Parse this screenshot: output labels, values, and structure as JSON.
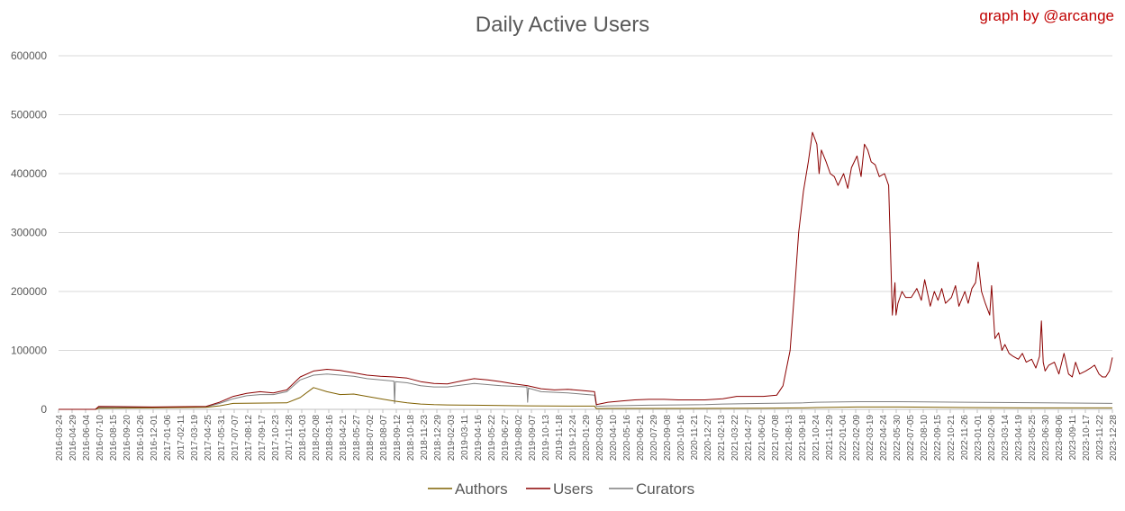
{
  "credit": "graph by @arcange",
  "colors": {
    "Authors": "#7f6000",
    "Users": "#8b0000",
    "Curators": "#7f7f7f",
    "grid": "#d9d9d9",
    "text": "#595959"
  },
  "chart_data": {
    "type": "line",
    "title": "Daily Active Users",
    "xlabel": "",
    "ylabel": "",
    "ylim": [
      0,
      600000
    ],
    "yticks": [
      "0",
      "100000",
      "200000",
      "300000",
      "400000",
      "500000",
      "600000"
    ],
    "grid": true,
    "legend_position": "bottom",
    "x_tick_labels": [
      "2016-03-24",
      "2016-04-29",
      "2016-06-04",
      "2016-07-10",
      "2016-08-15",
      "2016-09-20",
      "2016-10-26",
      "2016-12-01",
      "2017-01-06",
      "2017-02-11",
      "2017-03-19",
      "2017-04-25",
      "2017-05-31",
      "2017-07-07",
      "2017-08-12",
      "2017-09-17",
      "2017-10-23",
      "2017-11-28",
      "2018-01-03",
      "2018-02-08",
      "2018-03-16",
      "2018-04-21",
      "2018-05-27",
      "2018-07-02",
      "2018-08-07",
      "2018-09-12",
      "2018-10-18",
      "2018-11-23",
      "2018-12-29",
      "2019-02-03",
      "2019-03-11",
      "2019-04-16",
      "2019-05-22",
      "2019-06-27",
      "2019-08-02",
      "2019-09-07",
      "2019-10-13",
      "2019-11-18",
      "2019-12-24",
      "2020-01-29",
      "2020-03-05",
      "2020-04-10",
      "2020-05-16",
      "2020-06-21",
      "2020-07-29",
      "2020-09-08",
      "2020-10-16",
      "2020-11-21",
      "2020-12-27",
      "2021-02-13",
      "2021-03-22",
      "2021-04-27",
      "2021-06-02",
      "2021-07-08",
      "2021-08-13",
      "2021-09-18",
      "2021-10-24",
      "2021-11-29",
      "2022-01-04",
      "2022-02-09",
      "2022-03-19",
      "2022-04-24",
      "2022-05-30",
      "2022-07-05",
      "2022-08-10",
      "2022-09-15",
      "2022-10-21",
      "2022-11-26",
      "2023-01-01",
      "2023-02-06",
      "2023-03-14",
      "2023-04-19",
      "2023-05-25",
      "2023-06-30",
      "2023-08-06",
      "2023-09-11",
      "2023-10-17",
      "2023-11-22",
      "2023-12-28"
    ],
    "series": [
      {
        "name": "Authors",
        "x": [
          "2016-03-24",
          "2016-07-01",
          "2016-07-10",
          "2016-12-01",
          "2017-04-25",
          "2017-05-31",
          "2017-07-07",
          "2017-11-28",
          "2018-01-03",
          "2018-02-08",
          "2018-03-16",
          "2018-04-21",
          "2018-05-27",
          "2018-07-02",
          "2018-08-07",
          "2018-09-12",
          "2018-10-18",
          "2018-11-23",
          "2018-12-29",
          "2019-02-03",
          "2019-04-16",
          "2019-06-27",
          "2019-09-07",
          "2019-12-24",
          "2020-03-05",
          "2020-03-10",
          "2020-04-10",
          "2020-07-29",
          "2021-02-13",
          "2021-06-02",
          "2021-09-18",
          "2021-10-24",
          "2022-02-09",
          "2022-05-30",
          "2022-11-26",
          "2023-06-30",
          "2023-12-28"
        ],
        "values": [
          0,
          0,
          2000,
          2500,
          3500,
          6000,
          10000,
          11000,
          20000,
          37000,
          30000,
          25000,
          26000,
          22000,
          18000,
          14000,
          11000,
          9000,
          8000,
          7500,
          7000,
          6500,
          6000,
          5500,
          5500,
          1000,
          1500,
          1500,
          1700,
          2000,
          2500,
          3000,
          4000,
          4000,
          3000,
          2500,
          2500
        ]
      },
      {
        "name": "Users",
        "x": [
          "2016-03-24",
          "2016-07-01",
          "2016-07-10",
          "2016-12-01",
          "2017-04-25",
          "2017-05-31",
          "2017-07-07",
          "2017-08-12",
          "2017-09-17",
          "2017-10-23",
          "2017-11-28",
          "2018-01-03",
          "2018-02-08",
          "2018-03-16",
          "2018-04-21",
          "2018-05-27",
          "2018-07-02",
          "2018-08-07",
          "2018-09-12",
          "2018-10-18",
          "2018-11-23",
          "2018-12-29",
          "2019-02-03",
          "2019-03-11",
          "2019-04-16",
          "2019-05-22",
          "2019-06-27",
          "2019-08-02",
          "2019-09-07",
          "2019-10-13",
          "2019-11-18",
          "2019-12-24",
          "2020-01-29",
          "2020-03-05",
          "2020-03-10",
          "2020-04-10",
          "2020-05-16",
          "2020-06-21",
          "2020-07-29",
          "2020-09-08",
          "2020-10-16",
          "2020-11-21",
          "2020-12-27",
          "2021-02-13",
          "2021-03-22",
          "2021-04-27",
          "2021-06-02",
          "2021-07-08",
          "2021-07-25",
          "2021-08-13",
          "2021-08-25",
          "2021-09-05",
          "2021-09-18",
          "2021-10-01",
          "2021-10-12",
          "2021-10-24",
          "2021-10-30",
          "2021-11-05",
          "2021-11-18",
          "2021-11-29",
          "2021-12-10",
          "2021-12-20",
          "2022-01-04",
          "2022-01-15",
          "2022-01-25",
          "2022-02-09",
          "2022-02-20",
          "2022-03-01",
          "2022-03-10",
          "2022-03-19",
          "2022-03-30",
          "2022-04-10",
          "2022-04-24",
          "2022-05-05",
          "2022-05-15",
          "2022-05-22",
          "2022-05-25",
          "2022-05-30",
          "2022-06-10",
          "2022-06-20",
          "2022-07-05",
          "2022-07-20",
          "2022-08-01",
          "2022-08-10",
          "2022-08-25",
          "2022-09-05",
          "2022-09-15",
          "2022-09-25",
          "2022-10-05",
          "2022-10-21",
          "2022-11-01",
          "2022-11-10",
          "2022-11-26",
          "2022-12-05",
          "2022-12-15",
          "2022-12-25",
          "2023-01-01",
          "2023-01-10",
          "2023-01-20",
          "2023-02-01",
          "2023-02-06",
          "2023-02-15",
          "2023-02-25",
          "2023-03-06",
          "2023-03-14",
          "2023-03-25",
          "2023-04-05",
          "2023-04-19",
          "2023-04-30",
          "2023-05-10",
          "2023-05-25",
          "2023-06-05",
          "2023-06-15",
          "2023-06-20",
          "2023-06-25",
          "2023-06-30",
          "2023-07-10",
          "2023-07-25",
          "2023-08-06",
          "2023-08-20",
          "2023-09-01",
          "2023-09-11",
          "2023-09-20",
          "2023-10-01",
          "2023-10-17",
          "2023-10-30",
          "2023-11-10",
          "2023-11-22",
          "2023-12-01",
          "2023-12-10",
          "2023-12-20",
          "2023-12-28"
        ],
        "values": [
          0,
          0,
          5000,
          4000,
          5000,
          12000,
          22000,
          27000,
          30000,
          28000,
          33000,
          55000,
          65000,
          68000,
          66000,
          62000,
          58000,
          56000,
          55000,
          53000,
          47000,
          44000,
          43000,
          48000,
          52000,
          50000,
          47000,
          43000,
          40000,
          35000,
          33000,
          34000,
          32000,
          30000,
          8000,
          12000,
          14000,
          16000,
          17000,
          17000,
          16000,
          16000,
          16000,
          18000,
          22000,
          22000,
          22000,
          24000,
          40000,
          100000,
          200000,
          300000,
          370000,
          420000,
          470000,
          450000,
          400000,
          440000,
          420000,
          400000,
          395000,
          380000,
          400000,
          375000,
          410000,
          430000,
          395000,
          450000,
          440000,
          420000,
          415000,
          395000,
          400000,
          380000,
          160000,
          215000,
          160000,
          180000,
          200000,
          190000,
          190000,
          205000,
          185000,
          220000,
          175000,
          200000,
          185000,
          205000,
          180000,
          190000,
          210000,
          175000,
          200000,
          180000,
          205000,
          215000,
          250000,
          200000,
          180000,
          160000,
          210000,
          120000,
          130000,
          100000,
          110000,
          95000,
          90000,
          85000,
          95000,
          80000,
          85000,
          70000,
          90000,
          150000,
          80000,
          65000,
          75000,
          80000,
          60000,
          95000,
          60000,
          55000,
          80000,
          60000,
          65000,
          70000,
          75000,
          60000,
          55000,
          55000,
          65000,
          88000
        ]
      },
      {
        "name": "Curators",
        "x": [
          "2016-03-24",
          "2016-07-01",
          "2016-07-10",
          "2016-12-01",
          "2017-04-25",
          "2017-05-31",
          "2017-07-07",
          "2017-08-12",
          "2017-09-17",
          "2017-10-23",
          "2017-11-28",
          "2018-01-03",
          "2018-02-08",
          "2018-03-16",
          "2018-04-21",
          "2018-05-27",
          "2018-07-02",
          "2018-08-07",
          "2018-09-12",
          "2018-09-14",
          "2018-09-16",
          "2018-10-18",
          "2018-11-23",
          "2018-12-29",
          "2019-02-03",
          "2019-04-16",
          "2019-06-27",
          "2019-09-05",
          "2019-09-07",
          "2019-09-09",
          "2019-10-13",
          "2019-12-24",
          "2020-03-05",
          "2020-03-10",
          "2020-04-10",
          "2020-07-29",
          "2020-12-27",
          "2021-02-13",
          "2021-06-02",
          "2021-09-18",
          "2021-10-24",
          "2022-02-09",
          "2022-05-30",
          "2022-11-26",
          "2023-06-30",
          "2023-12-28"
        ],
        "values": [
          0,
          0,
          3000,
          3000,
          4000,
          10000,
          18000,
          23000,
          25000,
          25000,
          30000,
          50000,
          58000,
          60000,
          58000,
          56000,
          52000,
          50000,
          48000,
          10000,
          47000,
          45000,
          40000,
          38000,
          38000,
          44000,
          40000,
          38000,
          12000,
          36000,
          30000,
          28000,
          24000,
          5000,
          6000,
          7000,
          8000,
          9000,
          10000,
          11000,
          12000,
          13000,
          13000,
          12000,
          11000,
          10000
        ]
      }
    ]
  }
}
